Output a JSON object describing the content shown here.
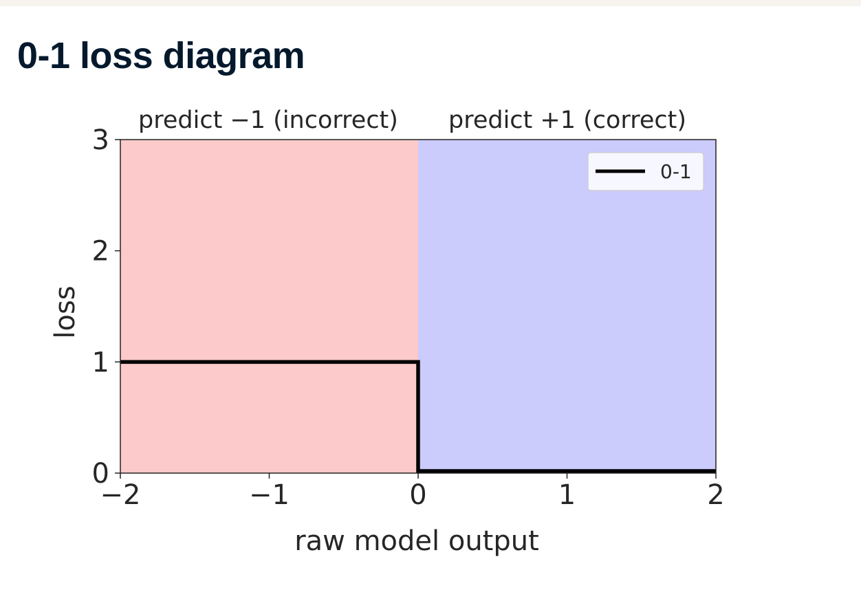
{
  "slide": {
    "title": "0-1 loss diagram"
  },
  "chart_data": {
    "type": "line",
    "xlabel": "raw model output",
    "ylabel": "loss",
    "xlim": [
      -2,
      2
    ],
    "ylim": [
      0,
      3
    ],
    "xticks": [
      -2,
      -1,
      0,
      1,
      2
    ],
    "xtick_labels": [
      "−2",
      "−1",
      "0",
      "1",
      "2"
    ],
    "yticks": [
      0,
      1,
      2,
      3
    ],
    "ytick_labels": [
      "0",
      "1",
      "2",
      "3"
    ],
    "grid": false,
    "legend_position": "top-right",
    "regions": [
      {
        "label": "predict −1 (incorrect)",
        "x_range": [
          -2,
          0
        ],
        "color": "#fccaca"
      },
      {
        "label": "predict +1 (correct)",
        "x_range": [
          0,
          2
        ],
        "color": "#cbcbfc"
      }
    ],
    "series": [
      {
        "name": "0-1",
        "color": "#000000",
        "x": [
          -2,
          0,
          0,
          2
        ],
        "y": [
          1,
          1,
          0,
          0
        ]
      }
    ]
  }
}
